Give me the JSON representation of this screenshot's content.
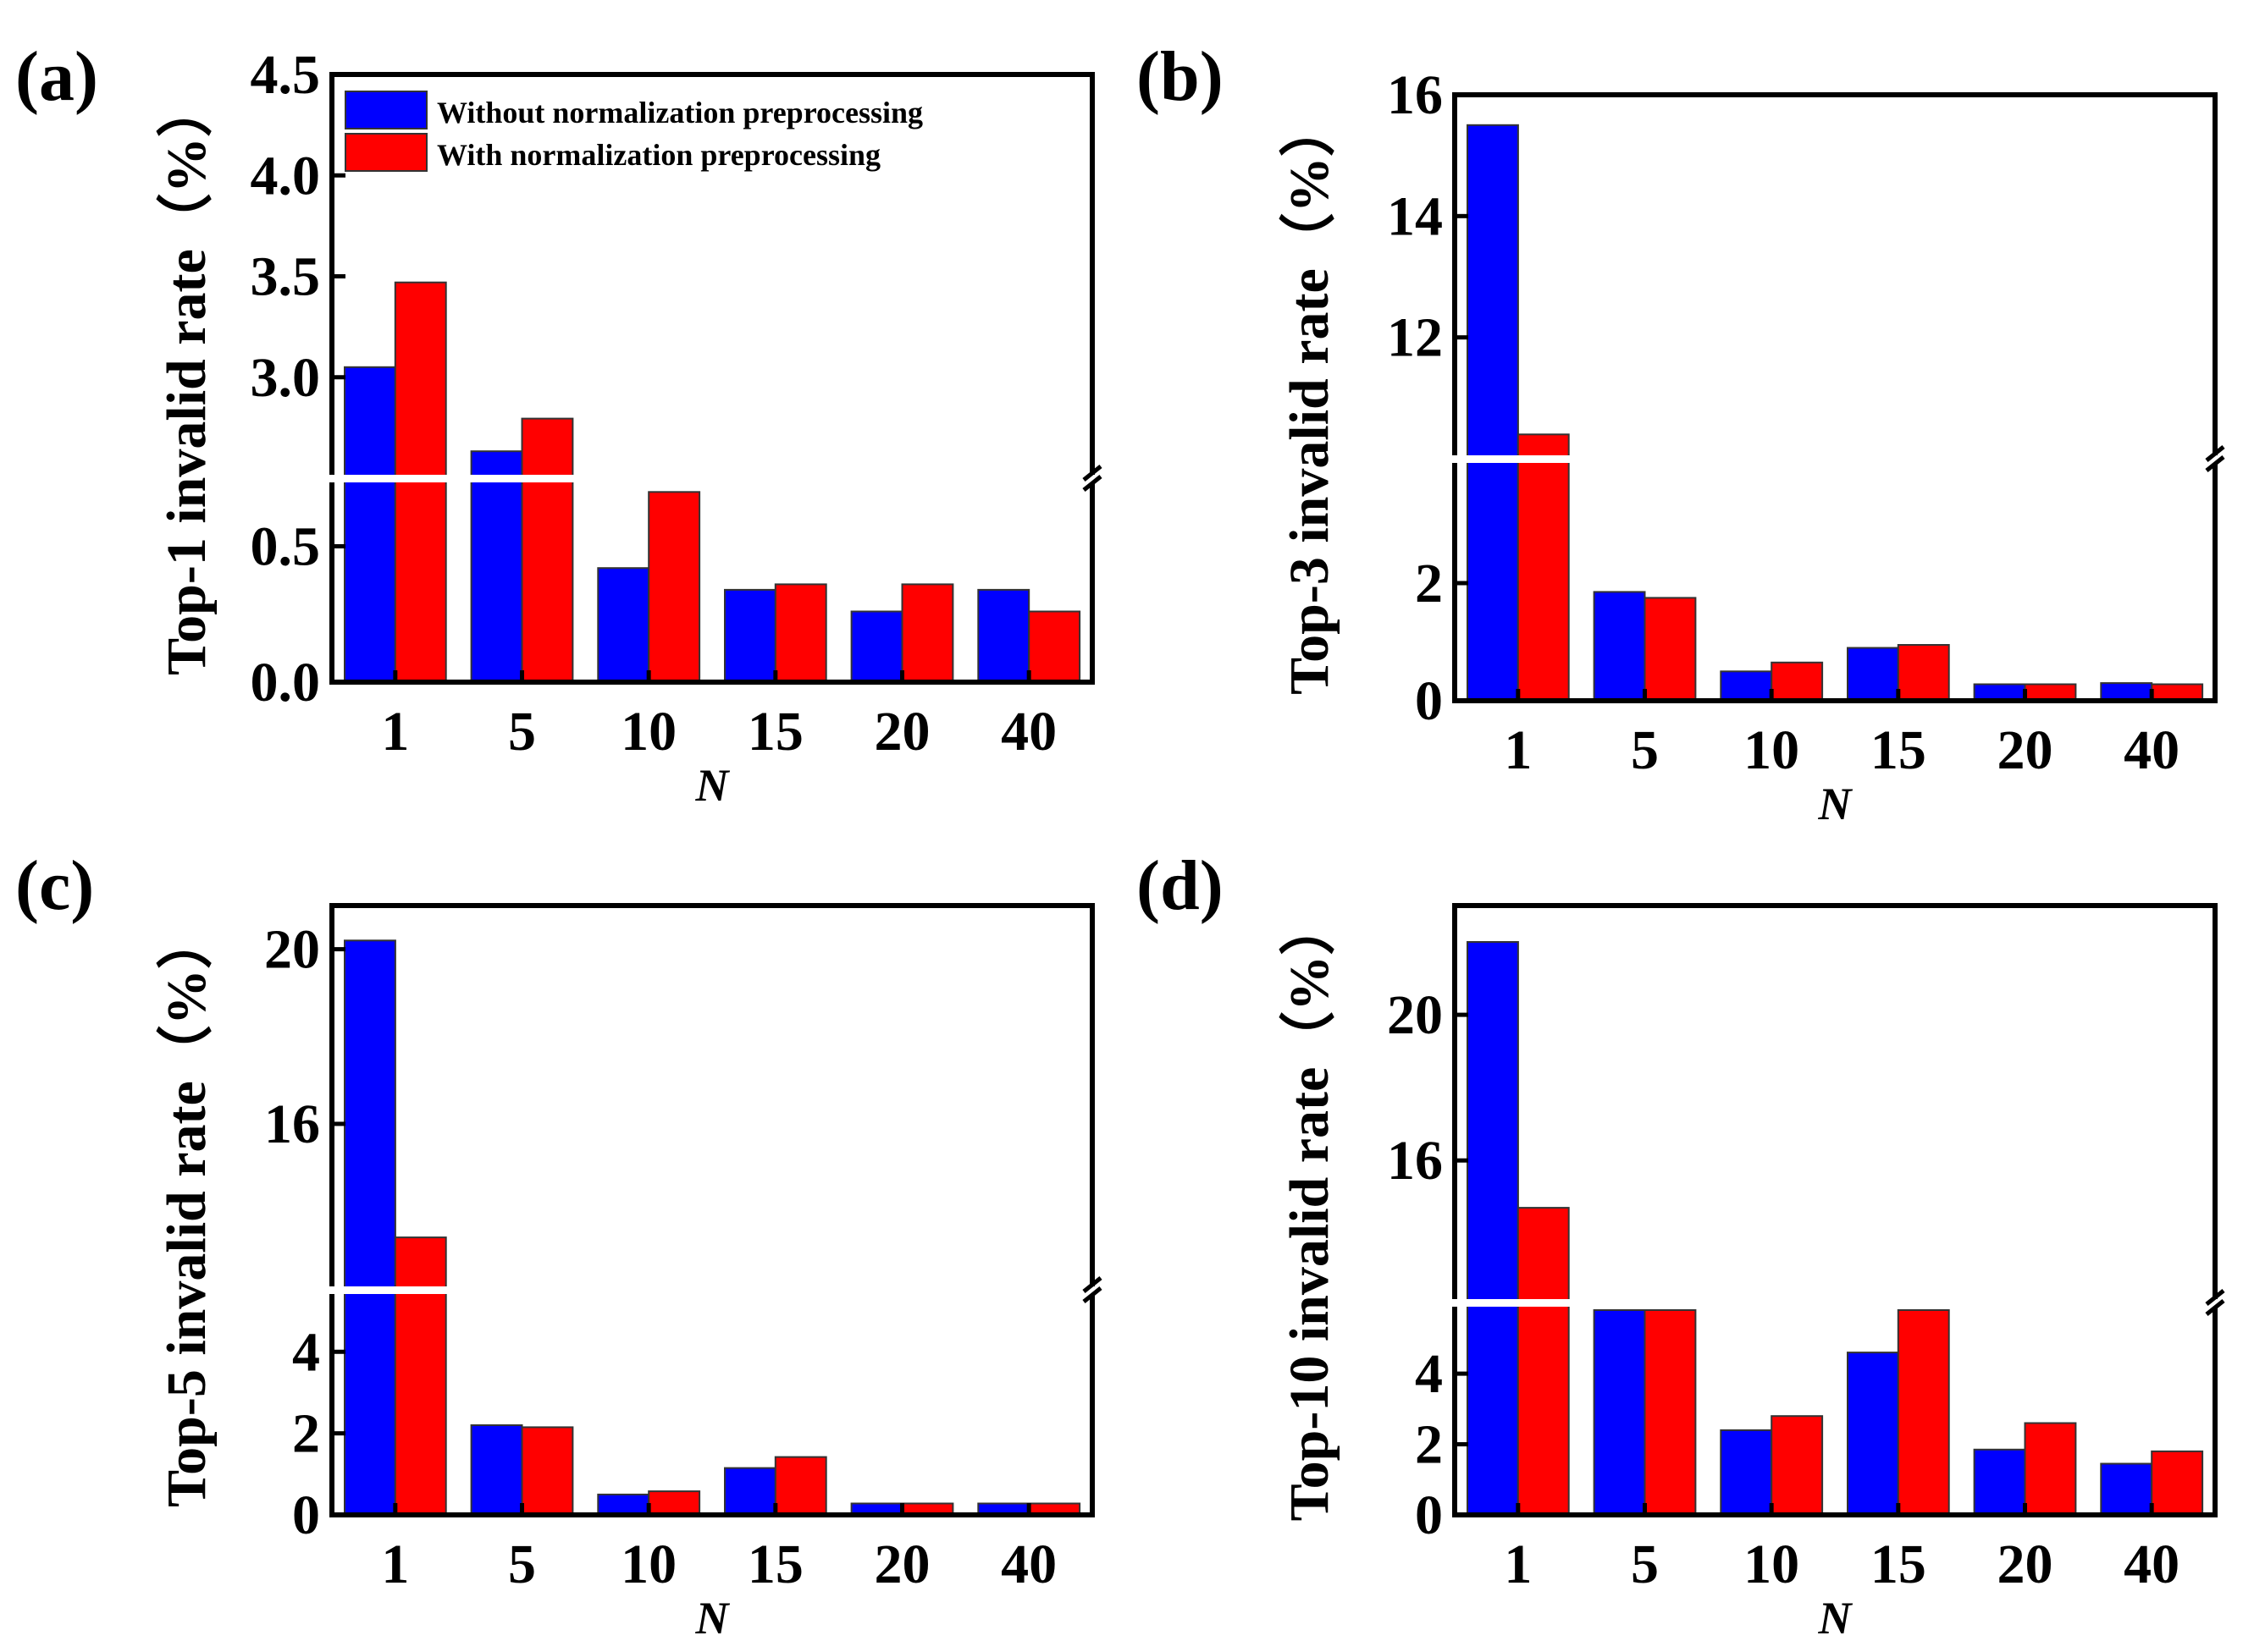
{
  "colors": {
    "without": "#0000ff",
    "with": "#ff0000"
  },
  "legend": {
    "without_label": "Without normalization preprocessing",
    "with_label": "With normalization preprocessing",
    "placement": "top-left inside panel (a)"
  },
  "chart_data": [
    {
      "panel": "(a)",
      "type": "bar",
      "categories": [
        "1",
        "5",
        "10",
        "15",
        "20",
        "40"
      ],
      "xlabel": "N",
      "ylabel": "Top-1 invalid rate（%）",
      "broken_axis": true,
      "lower_range": [
        0,
        1.0
      ],
      "upper_range": [
        2.5,
        4.5
      ],
      "lower_ticks": [
        "0.0",
        "0.5"
      ],
      "upper_ticks": [
        "3.0",
        "3.5",
        "4.0",
        "4.5"
      ],
      "series": [
        {
          "name": "Without normalization preprocessing",
          "values": [
            3.05,
            0.85,
            0.42,
            0.34,
            0.26,
            0.34
          ]
        },
        {
          "name": "With normalization preprocessing",
          "values": [
            3.47,
            0.97,
            0.7,
            0.36,
            0.36,
            0.26
          ]
        }
      ]
    },
    {
      "panel": "(b)",
      "type": "bar",
      "categories": [
        "1",
        "5",
        "10",
        "15",
        "20",
        "40"
      ],
      "xlabel": "N",
      "ylabel": "Top-3 invalid rate（%）",
      "broken_axis": true,
      "lower_range": [
        0,
        4
      ],
      "upper_range": [
        10,
        16
      ],
      "lower_ticks": [
        "0",
        "2"
      ],
      "upper_ticks": [
        "12",
        "14",
        "16"
      ],
      "series": [
        {
          "name": "Without normalization preprocessing",
          "values": [
            15.5,
            1.85,
            0.5,
            0.9,
            0.28,
            0.3
          ]
        },
        {
          "name": "With normalization preprocessing",
          "values": [
            10.4,
            1.75,
            0.65,
            0.95,
            0.28,
            0.28
          ]
        }
      ]
    },
    {
      "panel": "(c)",
      "type": "bar",
      "categories": [
        "1",
        "5",
        "10",
        "15",
        "20",
        "40"
      ],
      "xlabel": "N",
      "ylabel": "Top-5 invalid rate（%）",
      "broken_axis": true,
      "lower_range": [
        0,
        5.5
      ],
      "upper_range": [
        12.2,
        21
      ],
      "lower_ticks": [
        "0",
        "2",
        "4"
      ],
      "upper_ticks": [
        "16",
        "20"
      ],
      "series": [
        {
          "name": "Without normalization preprocessing",
          "values": [
            20.2,
            2.2,
            0.5,
            1.15,
            0.28,
            0.28
          ]
        },
        {
          "name": "With normalization preprocessing",
          "values": [
            13.4,
            2.15,
            0.58,
            1.42,
            0.28,
            0.28
          ]
        }
      ]
    },
    {
      "panel": "(d)",
      "type": "bar",
      "categories": [
        "1",
        "5",
        "10",
        "15",
        "20",
        "40"
      ],
      "xlabel": "N",
      "ylabel": "Top-10 invalid rate（%）",
      "broken_axis": true,
      "lower_range": [
        0,
        5.8
      ],
      "upper_range": [
        12.1,
        23
      ],
      "lower_ticks": [
        "0",
        "2",
        "4"
      ],
      "upper_ticks": [
        "16",
        "20"
      ],
      "series": [
        {
          "name": "Without normalization preprocessing",
          "values": [
            22.0,
            5.8,
            2.4,
            4.6,
            1.85,
            1.45
          ]
        },
        {
          "name": "With normalization preprocessing",
          "values": [
            14.7,
            5.8,
            2.8,
            5.8,
            2.6,
            1.8
          ]
        }
      ]
    }
  ]
}
